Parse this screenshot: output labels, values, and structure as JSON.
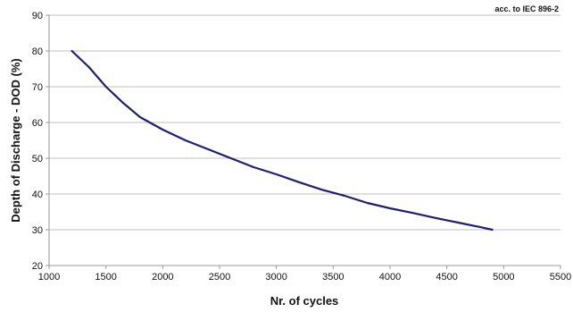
{
  "chart_data": {
    "type": "line",
    "title": "",
    "annotation": "acc. to IEC 896-2",
    "xlabel": "Nr. of cycles",
    "ylabel": "Depth of Discharge - DOD (%)",
    "xlim": [
      1000,
      5500
    ],
    "ylim": [
      20,
      90
    ],
    "xticks": [
      1000,
      1500,
      2000,
      2500,
      3000,
      3500,
      4000,
      4500,
      5000,
      5500
    ],
    "yticks": [
      20,
      30,
      40,
      50,
      60,
      70,
      80,
      90
    ],
    "grid": {
      "horizontal": true,
      "vertical": false
    },
    "legend": "none",
    "colors": {
      "line": "#1f1f6b",
      "grid": "#bfbfbf",
      "axis": "#9a9a9a"
    },
    "series": [
      {
        "x": [
          1200,
          1350,
          1500,
          1650,
          1800,
          2000,
          2200,
          2400,
          2600,
          2800,
          3000,
          3200,
          3400,
          3600,
          3800,
          4000,
          4200,
          4400,
          4600,
          4800,
          4900
        ],
        "y": [
          80,
          75.5,
          70,
          65.5,
          61.5,
          58,
          55,
          52.5,
          50,
          47.5,
          45.5,
          43.3,
          41.2,
          39.5,
          37.5,
          36,
          34.7,
          33.3,
          32,
          30.7,
          30
        ]
      }
    ]
  }
}
